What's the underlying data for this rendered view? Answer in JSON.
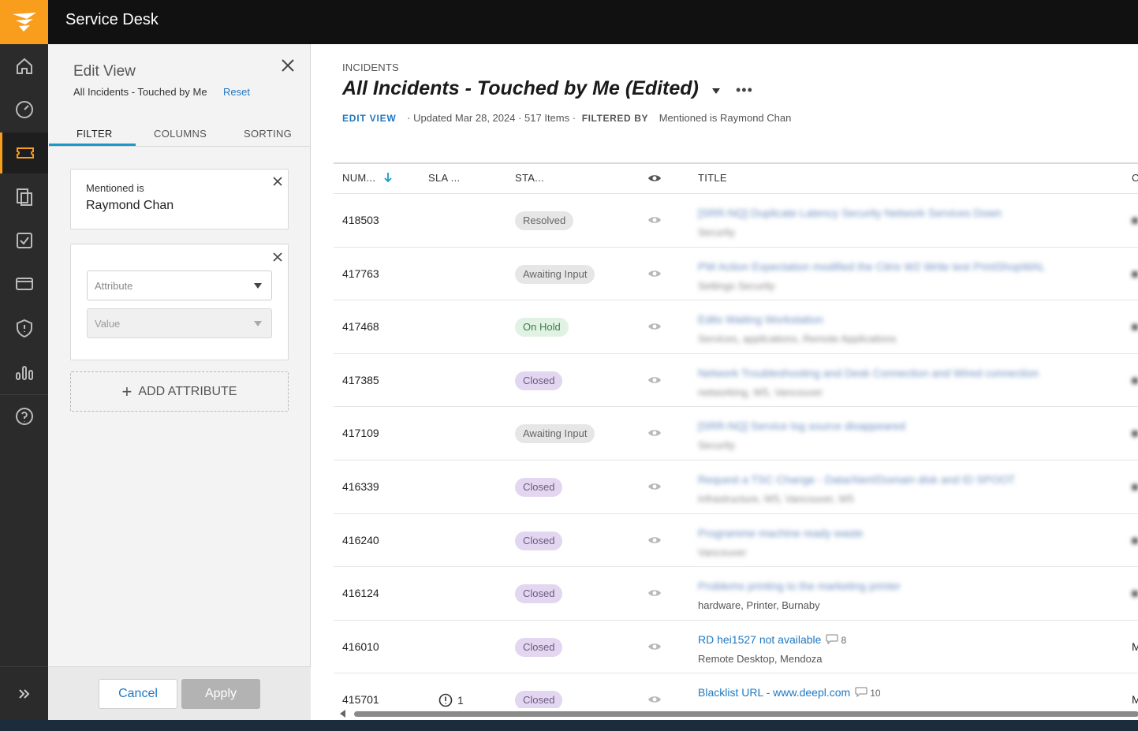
{
  "header": {
    "app_title": "Service Desk"
  },
  "rail": {
    "items": [
      "home-icon",
      "dashboard-icon",
      "ticket-icon",
      "assets-icon",
      "tasks-icon",
      "card-icon",
      "shield-icon",
      "reports-icon",
      "help-icon"
    ],
    "active": "ticket-icon",
    "expand": "expand-icon"
  },
  "panel": {
    "title": "Edit View",
    "view_name": "All Incidents - Touched by Me",
    "reset_label": "Reset",
    "tabs": [
      "FILTER",
      "COLUMNS",
      "SORTING"
    ],
    "active_tab": "FILTER",
    "filter": {
      "label": "Mentioned is",
      "value": "Raymond Chan"
    },
    "new_filter": {
      "attribute_placeholder": "Attribute",
      "value_placeholder": "Value"
    },
    "add_attribute_label": "ADD ATTRIBUTE",
    "cancel_label": "Cancel",
    "apply_label": "Apply"
  },
  "main": {
    "breadcrumb": "INCIDENTS",
    "title": "All Incidents - Touched by Me (Edited)",
    "edit_view_label": "EDIT VIEW",
    "updated": "· Updated Mar 28, 2024 · 517 Items ·",
    "filtered_by_label": "FILTERED BY",
    "filter_summary": "Mentioned is Raymond Chan",
    "columns": {
      "num": "NUM...",
      "sla": "SLA ...",
      "status": "STA...",
      "title": "TITLE",
      "edge": "C"
    }
  },
  "rows": [
    {
      "num": "418503",
      "status": "Resolved",
      "title": "[SRR-NQ] Duplicate Latency Security Network Services Down",
      "sub": "Security"
    },
    {
      "num": "417763",
      "status": "Awaiting Input",
      "title": "PW Action Expectation modified the Citrix W2 Write test PrintShopWAL",
      "sub": "Settings Security"
    },
    {
      "num": "417468",
      "status": "On Hold",
      "title": "Edits Waiting Workstation",
      "sub": "Services, applications, Remote Applications"
    },
    {
      "num": "417385",
      "status": "Closed",
      "title": "Network Troubleshooting and Desk Connection and Wired connection",
      "sub": "networking, W5, Vancouver"
    },
    {
      "num": "417109",
      "status": "Awaiting Input",
      "title": "[SRR-NQ] Service log source disappeared",
      "sub": "Security"
    },
    {
      "num": "416339",
      "status": "Closed",
      "title": "Request a TSC Change - Data/Alert/Domain disk and ID SPOOT",
      "sub": "Infrastructure, W5, Vancouver, W5"
    },
    {
      "num": "416240",
      "status": "Closed",
      "title": "Programme machine ready waste",
      "sub": "Vancouver"
    },
    {
      "num": "416124",
      "status": "Closed",
      "title": "Problems printing to the marketing printer",
      "sub": "hardware, Printer, Burnaby"
    },
    {
      "num": "416010",
      "status": "Closed",
      "title": "RD hei1527 not available",
      "comments": "8",
      "sub": "Remote Desktop, Mendoza",
      "edge": "M"
    },
    {
      "num": "415701",
      "status": "Closed",
      "title": "Blacklist URL - www.deepl.com",
      "comments": "10",
      "sub": "",
      "edge": "M",
      "sla": "1"
    }
  ],
  "colors": {
    "accent": "#f99d1c",
    "link": "#1f78c1",
    "closed_badge": "#e3d6f0",
    "hold_badge": "#dff2e3",
    "neutral_badge": "#e6e6e6"
  }
}
